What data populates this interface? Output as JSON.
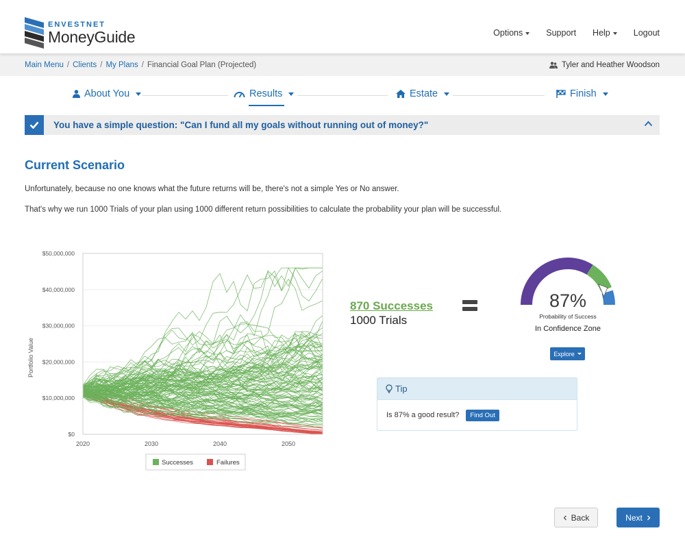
{
  "header": {
    "brand": "ENVESTNET",
    "product": "MoneyGuide",
    "nav": {
      "options": "Options",
      "support": "Support",
      "help": "Help",
      "logout": "Logout"
    }
  },
  "breadcrumb": {
    "items": [
      "Main Menu",
      "Clients",
      "My Plans",
      "Financial Goal Plan (Projected)"
    ],
    "user": "Tyler and Heather Woodson"
  },
  "steps": [
    {
      "label": "About You",
      "icon": "user-icon"
    },
    {
      "label": "Results",
      "icon": "speedometer-icon"
    },
    {
      "label": "Estate",
      "icon": "home-icon"
    },
    {
      "label": "Finish",
      "icon": "flag-icon"
    }
  ],
  "banner": {
    "question": "You have a simple question: \"Can I fund all my goals without running out of money?\""
  },
  "main": {
    "title": "Current Scenario",
    "para1": "Unfortunately, because no one knows what the future returns will be, there's not a simple Yes or No answer.",
    "para2": "That's why we run 1000 Trials of your plan using 1000 different return possibilities to calculate the probability your plan will be successful."
  },
  "chart_data": {
    "type": "line",
    "ylabel": "Portfolio Value",
    "xlabel": "",
    "xlim": [
      2020,
      2055
    ],
    "ylim": [
      0,
      50000000
    ],
    "x_ticks": [
      "2020",
      "2030",
      "2040",
      "2050"
    ],
    "y_ticks": [
      "$0",
      "$10,000,000",
      "$20,000,000",
      "$30,000,000",
      "$40,000,000",
      "$50,000,000"
    ],
    "legend": [
      "Successes",
      "Failures"
    ],
    "colors": {
      "successes": "#6cb25c",
      "failures": "#d9534f"
    },
    "series_summary": {
      "start_value": 12000000,
      "successes_final_range": [
        3000000,
        43000000
      ],
      "failures_final_range": [
        0,
        2000000
      ]
    }
  },
  "results": {
    "successes": "870 Successes",
    "trials": "1000 Trials",
    "percent": "87%",
    "probability_label": "Probability of Success",
    "zone": "In Confidence Zone",
    "explore_label": "Explore",
    "gauge": {
      "value": 0.87,
      "colors": {
        "purple": "#5e3f99",
        "green": "#6cb25c",
        "blue": "#3d7fc8"
      }
    }
  },
  "tip": {
    "title": "Tip",
    "text": "Is 87% a good result?",
    "button": "Find Out"
  },
  "footer": {
    "back": "Back",
    "next": "Next"
  }
}
